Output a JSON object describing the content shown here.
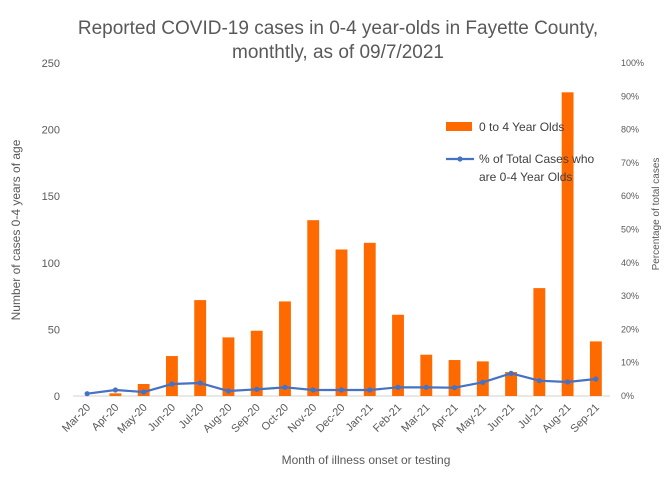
{
  "chart_data": {
    "type": "bar",
    "title_line1": "Reported COVID-19 cases in 0-4 year-olds in Fayette County,",
    "title_line2": "monthtly, as of 09/7/2021",
    "xlabel": "Month of illness onset or testing",
    "ylabel": "Number of cases 0-4 years of age",
    "y2label": "Percentage of total cases",
    "categories": [
      "Mar-20",
      "Apr-20",
      "May-20",
      "Jun-20",
      "Jul-20",
      "Aug-20",
      "Sep-20",
      "Oct-20",
      "Nov-20",
      "Dec-20",
      "Jan-21",
      "Feb-21",
      "Mar-21",
      "Apr-21",
      "May-21",
      "Jun-21",
      "Jul-21",
      "Aug-21",
      "Sep-21"
    ],
    "ylim": [
      0,
      250
    ],
    "yticks": [
      "0",
      "50",
      "100",
      "150",
      "200",
      "250"
    ],
    "y2lim": [
      0,
      100
    ],
    "y2ticks": [
      "0%",
      "10%",
      "20%",
      "30%",
      "40%",
      "50%",
      "60%",
      "70%",
      "80%",
      "90%",
      "100%"
    ],
    "grid": false,
    "legend_position": "upper-right",
    "series": [
      {
        "name": "0 to 4 Year Olds",
        "type": "bar",
        "axis": "left",
        "color": "#FF6A00",
        "values": [
          0,
          2,
          9,
          30,
          72,
          44,
          49,
          71,
          132,
          110,
          115,
          61,
          31,
          27,
          26,
          18,
          81,
          228,
          41
        ]
      },
      {
        "name": "% of Total Cases who are 0-4 Year Olds",
        "legend_line1": "% of Total Cases who",
        "legend_line2": "are 0-4 Year Olds",
        "type": "line",
        "axis": "right",
        "color": "#4472C4",
        "values": [
          0.7,
          1.8,
          1.2,
          3.6,
          3.9,
          1.5,
          2.0,
          2.6,
          1.8,
          1.8,
          1.8,
          2.6,
          2.6,
          2.5,
          4.1,
          6.8,
          4.6,
          4.2,
          5.1
        ]
      }
    ]
  }
}
